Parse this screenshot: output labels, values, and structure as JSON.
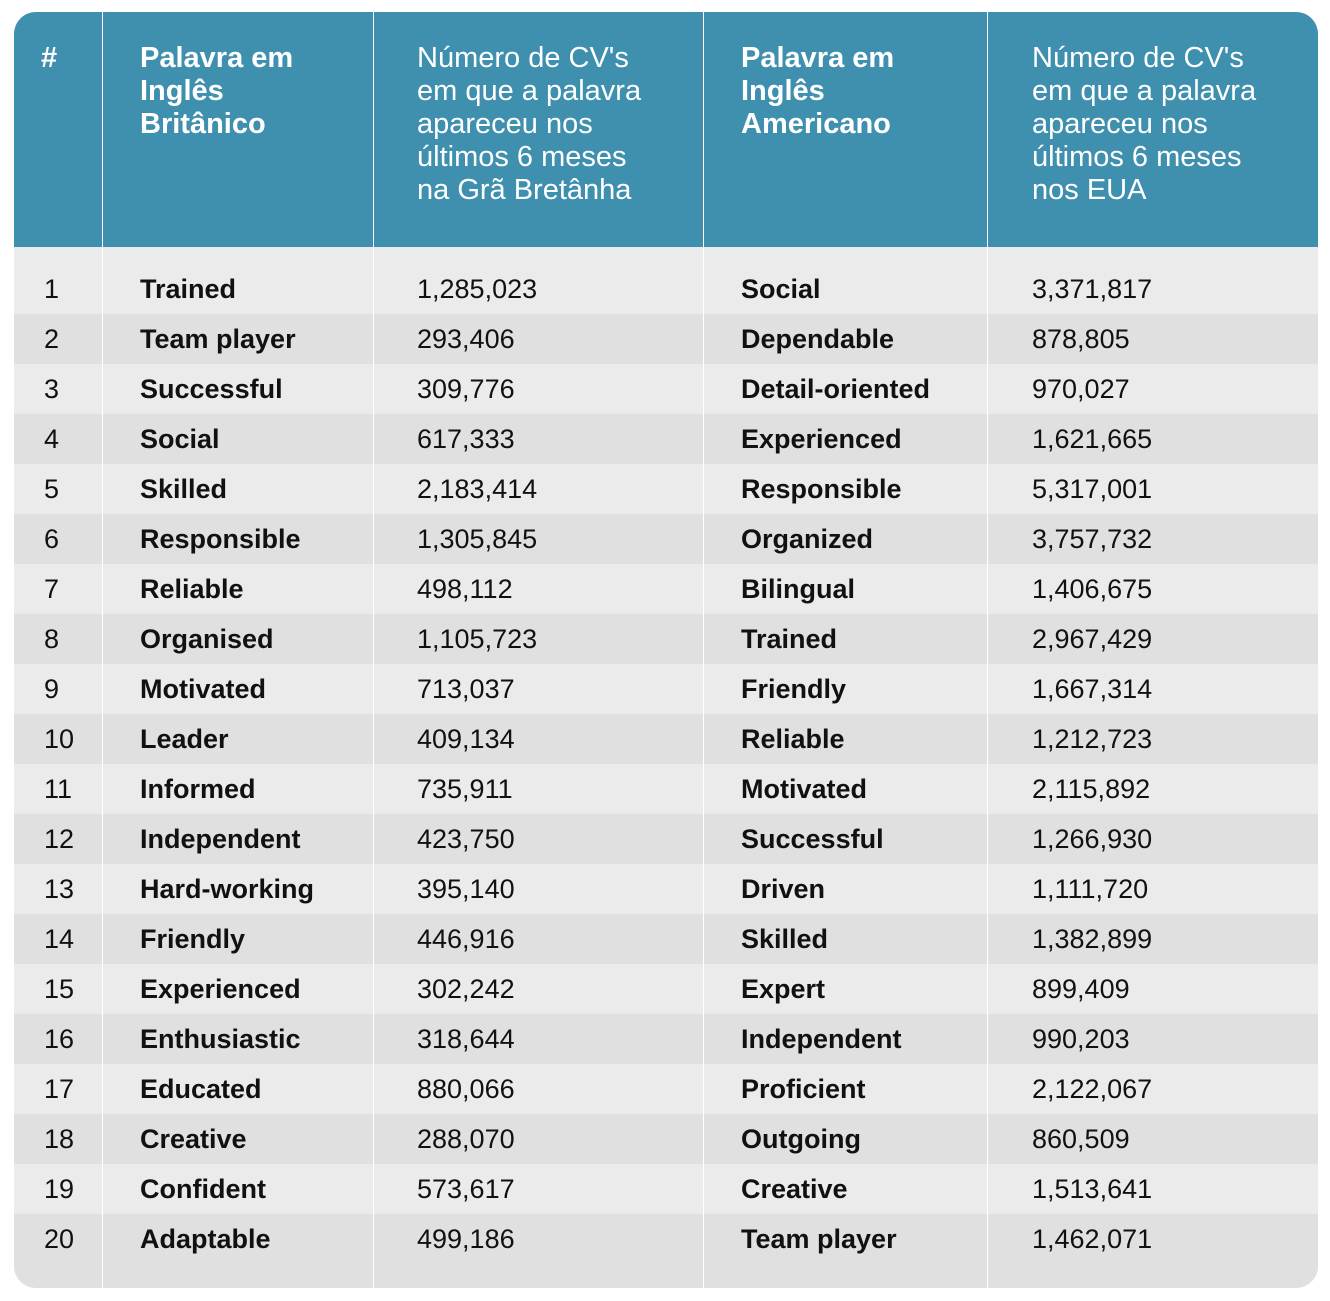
{
  "header": {
    "num": "#",
    "uk_word_lines": [
      "Palavra em",
      "Inglês",
      "Britânico"
    ],
    "uk_count_lines": [
      "Número de CV's",
      "em que a palavra",
      "apareceu nos",
      "últimos 6 meses",
      "na Grã Bretânha"
    ],
    "us_word_lines": [
      "Palavra em",
      "Inglês",
      "Americano"
    ],
    "us_count_lines": [
      "Número de CV's",
      "em que a palavra",
      "apareceu nos",
      "últimos 6 meses",
      "nos EUA"
    ]
  },
  "rows": [
    {
      "num": "1",
      "uk_word": "Trained",
      "uk_count": "1,285,023",
      "us_word": "Social",
      "us_count": "3,371,817"
    },
    {
      "num": "2",
      "uk_word": "Team player",
      "uk_count": "293,406",
      "us_word": "Dependable",
      "us_count": "878,805"
    },
    {
      "num": "3",
      "uk_word": "Successful",
      "uk_count": "309,776",
      "us_word": "Detail-oriented",
      "us_count": "970,027"
    },
    {
      "num": "4",
      "uk_word": "Social",
      "uk_count": "617,333",
      "us_word": "Experienced",
      "us_count": "1,621,665"
    },
    {
      "num": "5",
      "uk_word": "Skilled",
      "uk_count": "2,183,414",
      "us_word": "Responsible",
      "us_count": "5,317,001"
    },
    {
      "num": "6",
      "uk_word": "Responsible",
      "uk_count": "1,305,845",
      "us_word": "Organized",
      "us_count": "3,757,732"
    },
    {
      "num": "7",
      "uk_word": "Reliable",
      "uk_count": "498,112",
      "us_word": "Bilingual",
      "us_count": "1,406,675"
    },
    {
      "num": "8",
      "uk_word": "Organised",
      "uk_count": "1,105,723",
      "us_word": "Trained",
      "us_count": "2,967,429"
    },
    {
      "num": "9",
      "uk_word": "Motivated",
      "uk_count": "713,037",
      "us_word": "Friendly",
      "us_count": "1,667,314"
    },
    {
      "num": "10",
      "uk_word": "Leader",
      "uk_count": "409,134",
      "us_word": "Reliable",
      "us_count": "1,212,723"
    },
    {
      "num": "11",
      "uk_word": "Informed",
      "uk_count": "735,911",
      "us_word": "Motivated",
      "us_count": "2,115,892"
    },
    {
      "num": "12",
      "uk_word": "Independent",
      "uk_count": "423,750",
      "us_word": "Successful",
      "us_count": "1,266,930"
    },
    {
      "num": "13",
      "uk_word": "Hard-working",
      "uk_count": "395,140",
      "us_word": "Driven",
      "us_count": "1,111,720"
    },
    {
      "num": "14",
      "uk_word": "Friendly",
      "uk_count": "446,916",
      "us_word": "Skilled",
      "us_count": "1,382,899"
    },
    {
      "num": "15",
      "uk_word": "Experienced",
      "uk_count": "302,242",
      "us_word": "Expert",
      "us_count": "899,409"
    },
    {
      "num": "16",
      "uk_word": "Enthusiastic",
      "uk_count": "318,644",
      "us_word": "Independent",
      "us_count": "990,203"
    },
    {
      "num": "17",
      "uk_word": "Educated",
      "uk_count": "880,066",
      "us_word": "Proficient",
      "us_count": "2,122,067"
    },
    {
      "num": "18",
      "uk_word": "Creative",
      "uk_count": "288,070",
      "us_word": "Outgoing",
      "us_count": "860,509"
    },
    {
      "num": "19",
      "uk_word": "Confident",
      "uk_count": "573,617",
      "us_word": "Creative",
      "us_count": "1,513,641"
    },
    {
      "num": "20",
      "uk_word": "Adaptable",
      "uk_count": "499,186",
      "us_word": "Team player",
      "us_count": "1,462,071"
    }
  ],
  "colors": {
    "header_bg": "#3f8fae",
    "row_light": "#ebebeb",
    "row_dark": "#e0e0e0",
    "text": "#111111"
  }
}
